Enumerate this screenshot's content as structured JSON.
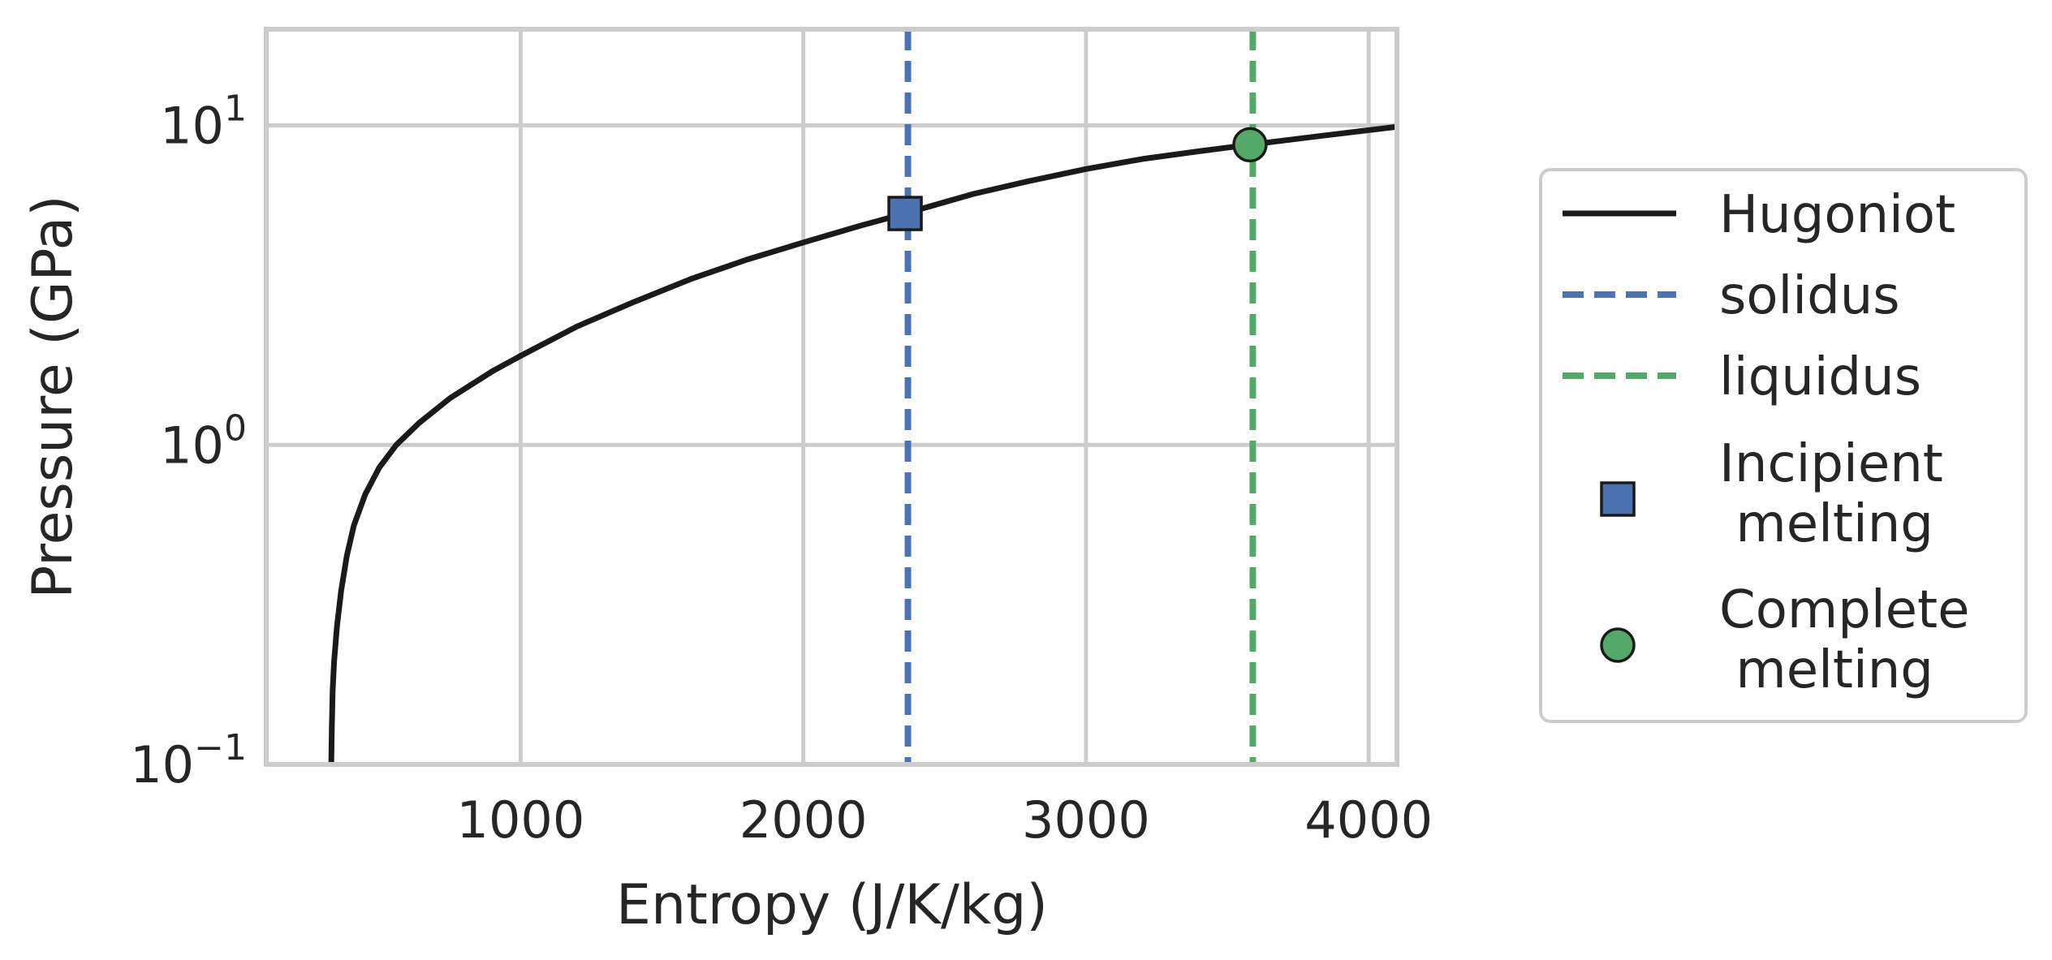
{
  "chart_data": {
    "type": "line",
    "xlabel": "Entropy (J/K/kg)",
    "ylabel": "Pressure (GPa)",
    "xlim": [
      100,
      4100
    ],
    "ylim": [
      0.1,
      20
    ],
    "yscale": "log",
    "grid": true,
    "legend_position": "right, outside plot",
    "xticks": [
      1000,
      2000,
      3000,
      4000
    ],
    "yticks": [
      {
        "value": 0.1,
        "base": "10",
        "exponent": "−1"
      },
      {
        "value": 1,
        "base": "10",
        "exponent": "0"
      },
      {
        "value": 10,
        "base": "10",
        "exponent": "1"
      }
    ],
    "series": [
      {
        "name": "Hugoniot",
        "style": "solid",
        "color": "#1a1a1a",
        "points": [
          [
            330,
            0.1
          ],
          [
            332,
            0.13
          ],
          [
            335,
            0.17
          ],
          [
            340,
            0.21
          ],
          [
            350,
            0.27
          ],
          [
            365,
            0.35
          ],
          [
            385,
            0.45
          ],
          [
            410,
            0.56
          ],
          [
            450,
            0.7
          ],
          [
            500,
            0.85
          ],
          [
            560,
            1.0
          ],
          [
            640,
            1.17
          ],
          [
            750,
            1.4
          ],
          [
            900,
            1.7
          ],
          [
            1000,
            1.9
          ],
          [
            1200,
            2.35
          ],
          [
            1400,
            2.8
          ],
          [
            1600,
            3.3
          ],
          [
            1800,
            3.8
          ],
          [
            2000,
            4.3
          ],
          [
            2200,
            4.85
          ],
          [
            2360,
            5.3
          ],
          [
            2600,
            6.1
          ],
          [
            2800,
            6.7
          ],
          [
            3000,
            7.3
          ],
          [
            3200,
            7.85
          ],
          [
            3400,
            8.3
          ],
          [
            3580,
            8.7
          ],
          [
            3800,
            9.2
          ],
          [
            4100,
            9.9
          ]
        ]
      },
      {
        "name": "solidus",
        "style": "dashed",
        "color": "#4c72b0",
        "x": 2370
      },
      {
        "name": "liquidus",
        "style": "dashed",
        "color": "#55a868",
        "x": 3590
      }
    ],
    "markers": [
      {
        "name_lines": [
          "Incipient",
          " melting"
        ],
        "shape": "square",
        "color": "#4c72b0",
        "x": 2360,
        "y": 5.3
      },
      {
        "name_lines": [
          "Complete",
          " melting"
        ],
        "shape": "circle",
        "color": "#55a868",
        "x": 3580,
        "y": 8.7
      }
    ]
  }
}
